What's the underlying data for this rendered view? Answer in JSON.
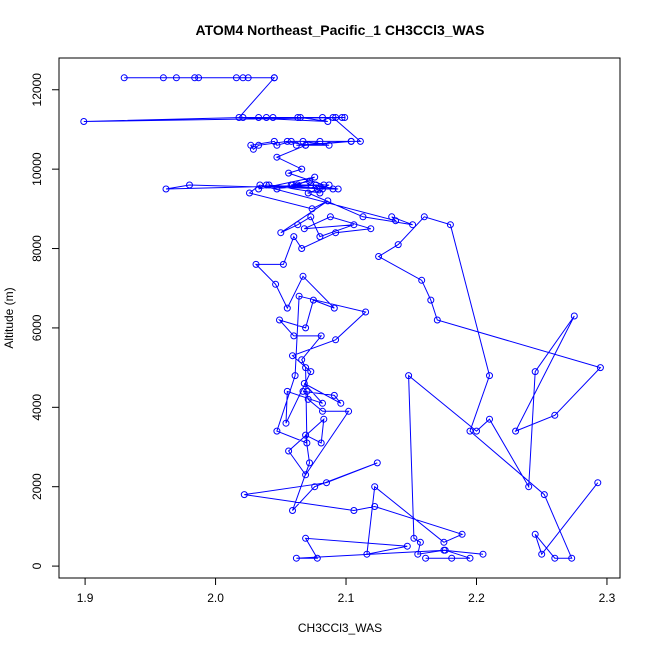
{
  "chart_data": {
    "type": "line",
    "title": "ATOM4 Northeast_Pacific_1 CH3CCl3_WAS",
    "xlabel": "CH3CCl3_WAS",
    "ylabel": "Altitude (m)",
    "xlim": [
      1.88,
      2.31
    ],
    "ylim": [
      -300,
      12800
    ],
    "xticks": [
      "1.9",
      "2.0",
      "2.1",
      "2.2",
      "2.3"
    ],
    "yticks": [
      "0",
      "2000",
      "4000",
      "6000",
      "8000",
      "10000",
      "12000"
    ],
    "grid": false,
    "legend": "none",
    "series_color": "#0000ff",
    "series": [
      {
        "x": [
          2.161,
          2.181,
          2.195,
          2.176,
          2.062,
          2.078,
          2.069,
          2.147,
          2.116,
          2.122,
          2.175,
          2.189,
          2.122,
          2.106,
          2.022,
          2.085,
          2.124,
          2.076,
          2.059,
          2.072,
          2.069,
          2.081,
          2.083,
          2.056,
          2.069,
          2.102,
          2.082,
          2.071,
          2.07,
          2.067,
          2.091,
          2.096,
          2.068,
          2.082,
          2.055,
          2.054,
          2.073,
          2.059,
          2.092,
          2.115,
          2.064,
          2.061,
          2.047,
          2.07,
          2.069,
          2.066,
          2.081,
          2.06,
          2.049,
          2.069,
          2.075,
          2.091,
          2.067,
          2.055,
          2.046,
          2.031,
          2.052,
          2.06,
          2.066,
          2.092,
          2.119,
          2.088,
          2.068,
          2.106,
          2.08,
          2.073,
          2.063,
          2.05,
          2.086,
          2.074,
          2.026,
          2.034,
          2.138,
          2.135,
          2.151,
          2.113,
          2.071,
          2.087,
          2.058,
          2.072,
          2.059,
          2.078,
          2.077,
          2.047,
          2.041,
          2.08,
          2.082,
          2.094,
          2.073,
          2.063,
          2.076,
          2.033,
          2.039,
          2.09,
          1.98,
          1.962,
          2.083,
          2.056,
          2.066,
          2.047,
          2.069,
          2.055,
          2.033,
          2.029,
          2.027,
          2.045,
          2.047,
          2.058,
          2.104,
          2.062,
          2.087,
          2.067,
          2.08,
          2.069,
          2.104,
          2.111,
          2.09,
          2.033,
          2.021,
          1.899,
          2.099,
          2.082,
          2.092,
          2.063,
          2.044,
          2.039,
          2.097,
          2.065,
          2.086,
          2.018,
          2.045,
          1.987,
          2.045,
          1.96,
          2.025,
          1.984,
          1.97,
          1.93,
          2.016,
          2.021
        ],
        "y": [
          200,
          200,
          200,
          400,
          200,
          200,
          700,
          500,
          300,
          2000,
          600,
          800,
          1500,
          1400,
          1800,
          2100,
          2600,
          2000,
          1400,
          2600,
          3300,
          3100,
          3700,
          2900,
          2300,
          3900,
          3900,
          4200,
          4400,
          4400,
          4300,
          4100,
          4600,
          4100,
          4400,
          3600,
          4900,
          5300,
          5700,
          6400,
          6800,
          4800,
          3400,
          3100,
          5000,
          5200,
          5800,
          5800,
          6200,
          6000,
          6700,
          6500,
          7300,
          6500,
          7100,
          7600,
          7600,
          8300,
          8000,
          8400,
          8500,
          8800,
          8500,
          8600,
          8300,
          8800,
          8600,
          8400,
          9200,
          9000,
          9400,
          9600,
          8700,
          8800,
          8600,
          8800,
          9400,
          9600,
          9600,
          9700,
          9600,
          9500,
          9600,
          9500,
          9600,
          9400,
          9500,
          9500,
          9600,
          9600,
          9800,
          9500,
          9600,
          9500,
          9600,
          9500,
          9600,
          9900,
          10000,
          10300,
          10600,
          10700,
          10600,
          10500,
          10600,
          10700,
          10600,
          10700,
          10700,
          10600,
          10600,
          10700,
          10700,
          10600,
          10700,
          10700,
          11300,
          11300,
          11300,
          11200,
          11300,
          11300,
          11300,
          11300,
          11300,
          11300,
          11300,
          11300,
          11200,
          11300,
          12300,
          12300,
          12300,
          12300,
          12300,
          12300,
          12300,
          12300,
          12300,
          12300
        ]
      },
      {
        "x": [
          2.205,
          2.175,
          2.155,
          2.157,
          2.152,
          2.148,
          2.2,
          2.21,
          2.24,
          2.245,
          2.275,
          2.23,
          2.26,
          2.295,
          2.17,
          2.165,
          2.158,
          2.125,
          2.14,
          2.16,
          2.18,
          2.21,
          2.195,
          2.252,
          2.273,
          2.26,
          2.245,
          2.25,
          2.293
        ],
        "y": [
          300,
          400,
          300,
          600,
          700,
          4800,
          3400,
          3700,
          2000,
          4900,
          6300,
          3400,
          3800,
          5000,
          6200,
          6700,
          7200,
          7800,
          8100,
          8800,
          8600,
          4800,
          3400,
          1800,
          200,
          200,
          800,
          300,
          2100
        ]
      }
    ]
  }
}
